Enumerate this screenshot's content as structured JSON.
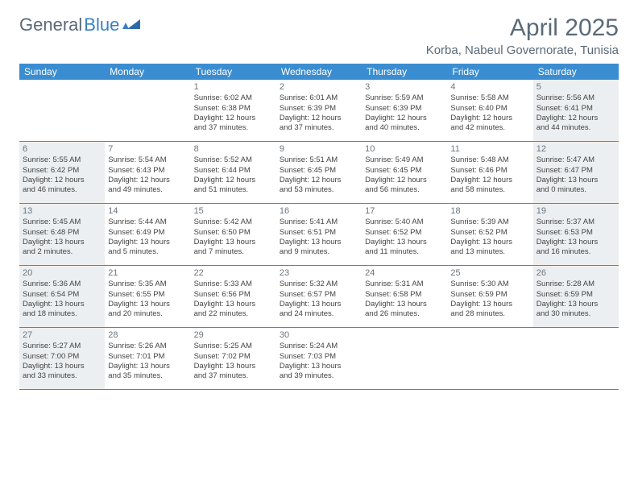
{
  "branding": {
    "logo_text_1": "General",
    "logo_text_2": "Blue",
    "logo_color_1": "#5a6a78",
    "logo_color_2": "#3a7fc4"
  },
  "header": {
    "title": "April 2025",
    "location": "Korba, Nabeul Governorate, Tunisia"
  },
  "styles": {
    "header_bg": "#3a8dd0",
    "shaded_bg": "#eceff1",
    "text_color": "#444",
    "daynum_color": "#6a7680"
  },
  "day_labels": [
    "Sunday",
    "Monday",
    "Tuesday",
    "Wednesday",
    "Thursday",
    "Friday",
    "Saturday"
  ],
  "weeks": [
    [
      {
        "empty": true
      },
      {
        "empty": true
      },
      {
        "day": "1",
        "sunrise": "Sunrise: 6:02 AM",
        "sunset": "Sunset: 6:38 PM",
        "daylight1": "Daylight: 12 hours",
        "daylight2": "and 37 minutes."
      },
      {
        "day": "2",
        "sunrise": "Sunrise: 6:01 AM",
        "sunset": "Sunset: 6:39 PM",
        "daylight1": "Daylight: 12 hours",
        "daylight2": "and 37 minutes."
      },
      {
        "day": "3",
        "sunrise": "Sunrise: 5:59 AM",
        "sunset": "Sunset: 6:39 PM",
        "daylight1": "Daylight: 12 hours",
        "daylight2": "and 40 minutes."
      },
      {
        "day": "4",
        "sunrise": "Sunrise: 5:58 AM",
        "sunset": "Sunset: 6:40 PM",
        "daylight1": "Daylight: 12 hours",
        "daylight2": "and 42 minutes."
      },
      {
        "day": "5",
        "sunrise": "Sunrise: 5:56 AM",
        "sunset": "Sunset: 6:41 PM",
        "daylight1": "Daylight: 12 hours",
        "daylight2": "and 44 minutes.",
        "shaded": true
      }
    ],
    [
      {
        "day": "6",
        "sunrise": "Sunrise: 5:55 AM",
        "sunset": "Sunset: 6:42 PM",
        "daylight1": "Daylight: 12 hours",
        "daylight2": "and 46 minutes.",
        "shaded": true
      },
      {
        "day": "7",
        "sunrise": "Sunrise: 5:54 AM",
        "sunset": "Sunset: 6:43 PM",
        "daylight1": "Daylight: 12 hours",
        "daylight2": "and 49 minutes."
      },
      {
        "day": "8",
        "sunrise": "Sunrise: 5:52 AM",
        "sunset": "Sunset: 6:44 PM",
        "daylight1": "Daylight: 12 hours",
        "daylight2": "and 51 minutes."
      },
      {
        "day": "9",
        "sunrise": "Sunrise: 5:51 AM",
        "sunset": "Sunset: 6:45 PM",
        "daylight1": "Daylight: 12 hours",
        "daylight2": "and 53 minutes."
      },
      {
        "day": "10",
        "sunrise": "Sunrise: 5:49 AM",
        "sunset": "Sunset: 6:45 PM",
        "daylight1": "Daylight: 12 hours",
        "daylight2": "and 56 minutes."
      },
      {
        "day": "11",
        "sunrise": "Sunrise: 5:48 AM",
        "sunset": "Sunset: 6:46 PM",
        "daylight1": "Daylight: 12 hours",
        "daylight2": "and 58 minutes."
      },
      {
        "day": "12",
        "sunrise": "Sunrise: 5:47 AM",
        "sunset": "Sunset: 6:47 PM",
        "daylight1": "Daylight: 13 hours",
        "daylight2": "and 0 minutes.",
        "shaded": true
      }
    ],
    [
      {
        "day": "13",
        "sunrise": "Sunrise: 5:45 AM",
        "sunset": "Sunset: 6:48 PM",
        "daylight1": "Daylight: 13 hours",
        "daylight2": "and 2 minutes.",
        "shaded": true
      },
      {
        "day": "14",
        "sunrise": "Sunrise: 5:44 AM",
        "sunset": "Sunset: 6:49 PM",
        "daylight1": "Daylight: 13 hours",
        "daylight2": "and 5 minutes."
      },
      {
        "day": "15",
        "sunrise": "Sunrise: 5:42 AM",
        "sunset": "Sunset: 6:50 PM",
        "daylight1": "Daylight: 13 hours",
        "daylight2": "and 7 minutes."
      },
      {
        "day": "16",
        "sunrise": "Sunrise: 5:41 AM",
        "sunset": "Sunset: 6:51 PM",
        "daylight1": "Daylight: 13 hours",
        "daylight2": "and 9 minutes."
      },
      {
        "day": "17",
        "sunrise": "Sunrise: 5:40 AM",
        "sunset": "Sunset: 6:52 PM",
        "daylight1": "Daylight: 13 hours",
        "daylight2": "and 11 minutes."
      },
      {
        "day": "18",
        "sunrise": "Sunrise: 5:39 AM",
        "sunset": "Sunset: 6:52 PM",
        "daylight1": "Daylight: 13 hours",
        "daylight2": "and 13 minutes."
      },
      {
        "day": "19",
        "sunrise": "Sunrise: 5:37 AM",
        "sunset": "Sunset: 6:53 PM",
        "daylight1": "Daylight: 13 hours",
        "daylight2": "and 16 minutes.",
        "shaded": true
      }
    ],
    [
      {
        "day": "20",
        "sunrise": "Sunrise: 5:36 AM",
        "sunset": "Sunset: 6:54 PM",
        "daylight1": "Daylight: 13 hours",
        "daylight2": "and 18 minutes.",
        "shaded": true
      },
      {
        "day": "21",
        "sunrise": "Sunrise: 5:35 AM",
        "sunset": "Sunset: 6:55 PM",
        "daylight1": "Daylight: 13 hours",
        "daylight2": "and 20 minutes."
      },
      {
        "day": "22",
        "sunrise": "Sunrise: 5:33 AM",
        "sunset": "Sunset: 6:56 PM",
        "daylight1": "Daylight: 13 hours",
        "daylight2": "and 22 minutes."
      },
      {
        "day": "23",
        "sunrise": "Sunrise: 5:32 AM",
        "sunset": "Sunset: 6:57 PM",
        "daylight1": "Daylight: 13 hours",
        "daylight2": "and 24 minutes."
      },
      {
        "day": "24",
        "sunrise": "Sunrise: 5:31 AM",
        "sunset": "Sunset: 6:58 PM",
        "daylight1": "Daylight: 13 hours",
        "daylight2": "and 26 minutes."
      },
      {
        "day": "25",
        "sunrise": "Sunrise: 5:30 AM",
        "sunset": "Sunset: 6:59 PM",
        "daylight1": "Daylight: 13 hours",
        "daylight2": "and 28 minutes."
      },
      {
        "day": "26",
        "sunrise": "Sunrise: 5:28 AM",
        "sunset": "Sunset: 6:59 PM",
        "daylight1": "Daylight: 13 hours",
        "daylight2": "and 30 minutes.",
        "shaded": true
      }
    ],
    [
      {
        "day": "27",
        "sunrise": "Sunrise: 5:27 AM",
        "sunset": "Sunset: 7:00 PM",
        "daylight1": "Daylight: 13 hours",
        "daylight2": "and 33 minutes.",
        "shaded": true
      },
      {
        "day": "28",
        "sunrise": "Sunrise: 5:26 AM",
        "sunset": "Sunset: 7:01 PM",
        "daylight1": "Daylight: 13 hours",
        "daylight2": "and 35 minutes."
      },
      {
        "day": "29",
        "sunrise": "Sunrise: 5:25 AM",
        "sunset": "Sunset: 7:02 PM",
        "daylight1": "Daylight: 13 hours",
        "daylight2": "and 37 minutes."
      },
      {
        "day": "30",
        "sunrise": "Sunrise: 5:24 AM",
        "sunset": "Sunset: 7:03 PM",
        "daylight1": "Daylight: 13 hours",
        "daylight2": "and 39 minutes."
      },
      {
        "empty": true
      },
      {
        "empty": true
      },
      {
        "empty": true
      }
    ]
  ]
}
